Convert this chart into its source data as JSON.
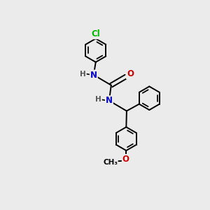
{
  "background_color": "#ebebeb",
  "atom_colors": {
    "C": "#000000",
    "N": "#0000cc",
    "O": "#cc0000",
    "Cl": "#00bb00",
    "H": "#000000"
  },
  "bond_color": "#000000",
  "bond_width": 1.4,
  "figsize": [
    3.0,
    3.0
  ],
  "dpi": 100
}
